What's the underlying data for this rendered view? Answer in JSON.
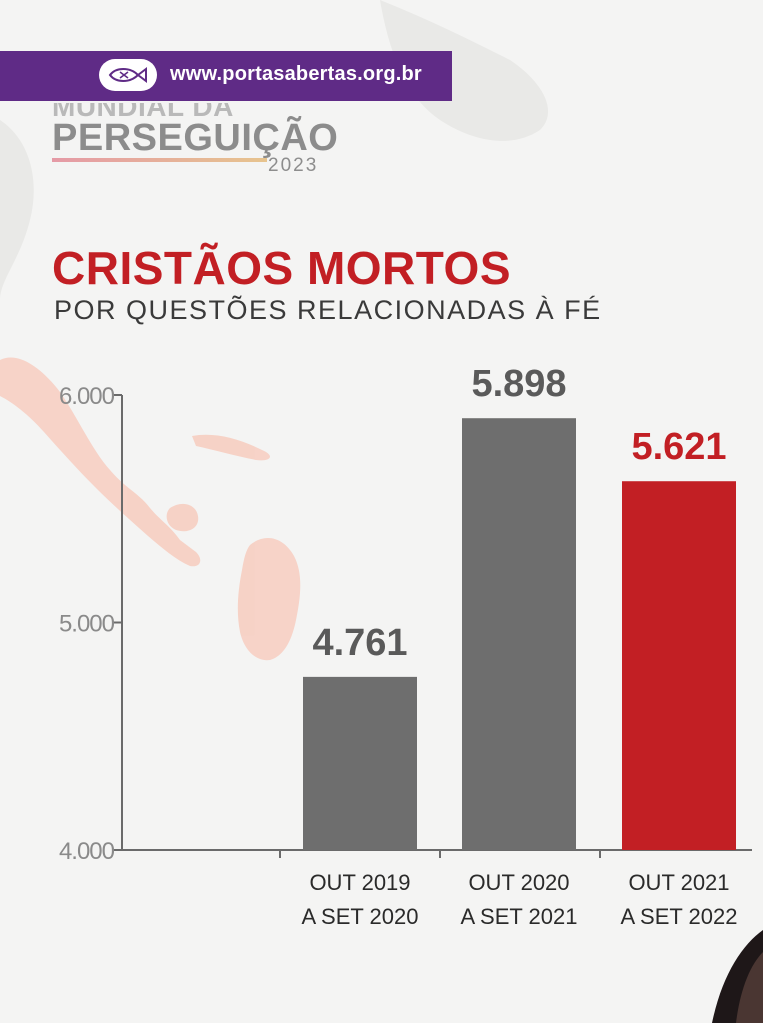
{
  "banner": {
    "url": "www.portasabertas.org.br",
    "color": "#5f2b86"
  },
  "brand": {
    "line1": "MUNDIAL DA",
    "line2": "PERSEGUIÇÃO",
    "year": "2023"
  },
  "chart_data": {
    "type": "bar",
    "title": "CRISTÃOS MORTOS",
    "subtitle": "POR QUESTÕES RELACIONADAS À FÉ",
    "categories": [
      [
        "OUT 2019",
        "A SET 2020"
      ],
      [
        "OUT 2020",
        "A SET 2021"
      ],
      [
        "OUT 2021",
        "A SET 2022"
      ]
    ],
    "values": [
      4761,
      5898,
      5621
    ],
    "value_labels": [
      "4.761",
      "5.898",
      "5.621"
    ],
    "bar_colors": [
      "#6e6e6e",
      "#6e6e6e",
      "#c21f24"
    ],
    "label_colors": [
      "#5a5a5a",
      "#5a5a5a",
      "#c21f24"
    ],
    "ylim": [
      4000,
      6000
    ],
    "yticks": [
      4000,
      5000,
      6000
    ],
    "ytick_labels": [
      "4.000",
      "5.000",
      "6.000"
    ],
    "grid": false
  }
}
